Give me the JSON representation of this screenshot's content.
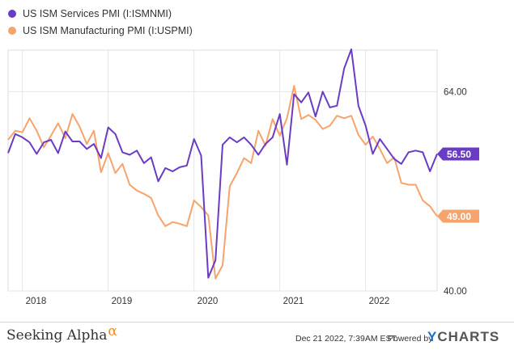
{
  "legend": [
    {
      "name": "US ISM Services PMI (I:ISMNMI)",
      "color": "#6a3cc4"
    },
    {
      "name": "US ISM Manufacturing PMI (I:USPMI)",
      "color": "#f7a36c"
    }
  ],
  "footer": {
    "brand": "Seeking Alpha",
    "brand_mark": "α",
    "timestamp": "Dec 21 2022, 7:39AM EST.",
    "powered_by": "Powered by",
    "provider_y": "Y",
    "provider_rest": "CHARTS"
  },
  "chart_data": {
    "type": "line",
    "x_ticks": [
      "2018",
      "2019",
      "2020",
      "2021",
      "2022"
    ],
    "y_ticks": [
      "40.00",
      "64.00"
    ],
    "ylim": [
      40,
      69
    ],
    "xlim": [
      "2017-11",
      "2022-11"
    ],
    "grid": true,
    "x": [
      "2017-11",
      "2017-12",
      "2018-01",
      "2018-02",
      "2018-03",
      "2018-04",
      "2018-05",
      "2018-06",
      "2018-07",
      "2018-08",
      "2018-09",
      "2018-10",
      "2018-11",
      "2018-12",
      "2019-01",
      "2019-02",
      "2019-03",
      "2019-04",
      "2019-05",
      "2019-06",
      "2019-07",
      "2019-08",
      "2019-09",
      "2019-10",
      "2019-11",
      "2019-12",
      "2020-01",
      "2020-02",
      "2020-03",
      "2020-04",
      "2020-05",
      "2020-06",
      "2020-07",
      "2020-08",
      "2020-09",
      "2020-10",
      "2020-11",
      "2020-12",
      "2021-01",
      "2021-02",
      "2021-03",
      "2021-04",
      "2021-05",
      "2021-06",
      "2021-07",
      "2021-08",
      "2021-09",
      "2021-10",
      "2021-11",
      "2021-12",
      "2022-01",
      "2022-02",
      "2022-03",
      "2022-04",
      "2022-05",
      "2022-06",
      "2022-07",
      "2022-08",
      "2022-09",
      "2022-10",
      "2022-11"
    ],
    "series": [
      {
        "name": "US ISM Services PMI (I:ISMNMI)",
        "color": "#6a3cc4",
        "last_label": "56.50",
        "values": [
          56.6,
          58.9,
          58.5,
          57.9,
          56.5,
          57.9,
          58.2,
          56.6,
          59.2,
          58.0,
          58.0,
          57.1,
          57.7,
          56.0,
          59.7,
          58.9,
          56.7,
          56.4,
          56.9,
          55.4,
          56.1,
          53.2,
          54.8,
          54.4,
          54.9,
          55.1,
          58.3,
          56.3,
          41.6,
          43.7,
          57.6,
          58.5,
          57.9,
          58.5,
          57.6,
          56.4,
          57.7,
          58.5,
          61.3,
          55.2,
          63.7,
          62.7,
          63.9,
          61.0,
          64.0,
          62.1,
          62.3,
          66.8,
          69.1,
          62.3,
          59.9,
          56.5,
          58.3,
          57.1,
          55.9,
          55.3,
          56.7,
          56.9,
          56.7,
          54.4,
          56.5
        ]
      },
      {
        "name": "US ISM Manufacturing PMI (I:USPMI)",
        "color": "#f7a36c",
        "last_label": "49.00",
        "values": [
          58.2,
          59.3,
          59.1,
          60.8,
          59.3,
          57.3,
          58.7,
          60.2,
          58.4,
          61.3,
          59.8,
          57.7,
          59.3,
          54.3,
          56.6,
          54.2,
          55.3,
          52.8,
          52.1,
          51.7,
          51.2,
          49.1,
          47.8,
          48.3,
          48.1,
          47.8,
          50.9,
          50.1,
          49.1,
          41.5,
          43.1,
          52.6,
          54.2,
          56.0,
          55.4,
          59.3,
          57.5,
          60.7,
          58.7,
          60.8,
          64.7,
          60.7,
          61.2,
          60.6,
          59.5,
          59.9,
          61.1,
          60.8,
          61.1,
          58.8,
          57.6,
          58.6,
          57.1,
          55.4,
          56.1,
          53.0,
          52.8,
          52.8,
          50.9,
          50.2,
          49.0
        ]
      }
    ]
  }
}
